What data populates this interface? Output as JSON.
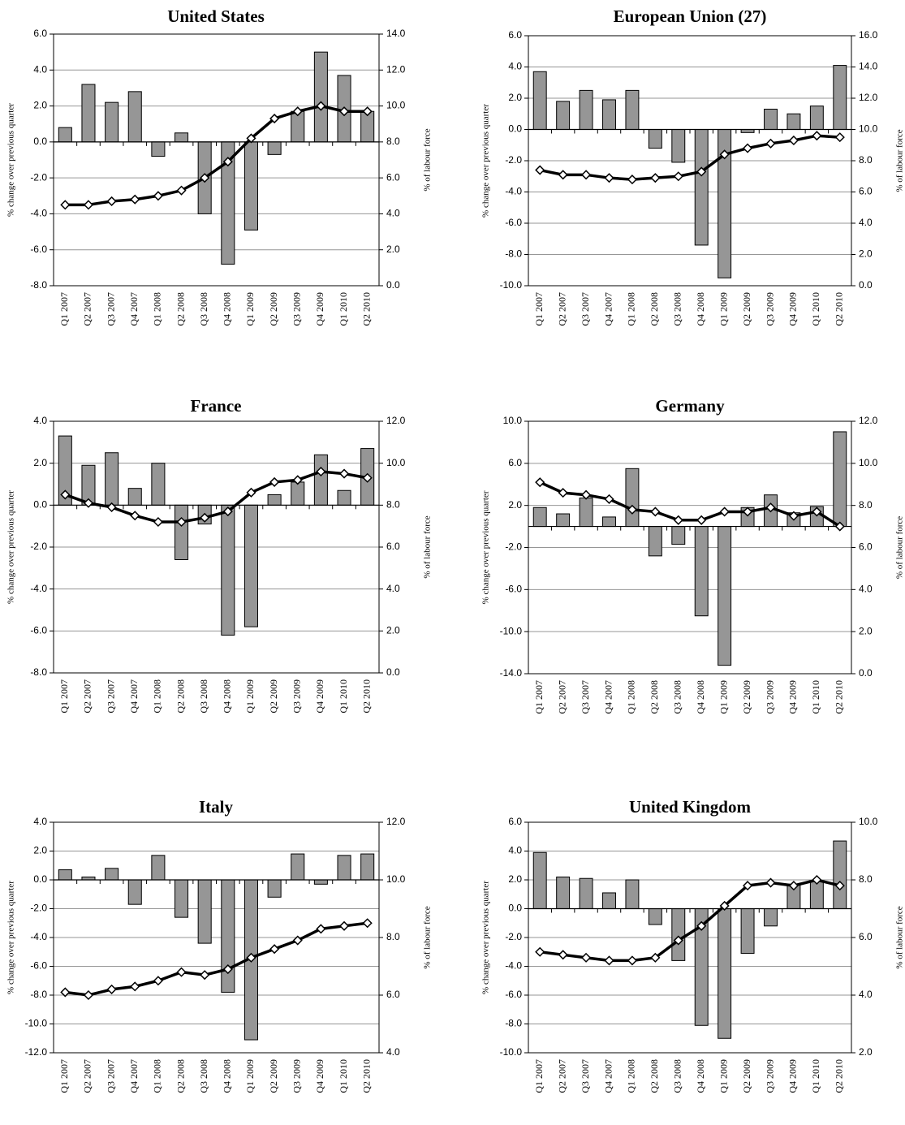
{
  "categories": [
    "Q1 2007",
    "Q2 2007",
    "Q3 2007",
    "Q4 2007",
    "Q1 2008",
    "Q2 2008",
    "Q3 2008",
    "Q4 2008",
    "Q1 2009",
    "Q2 2009",
    "Q3 2009",
    "Q4 2009",
    "Q1 2010",
    "Q2 2010"
  ],
  "labels": {
    "ylabel_left": "% change over previous quarter",
    "ylabel_right": "% of labour force"
  },
  "colors": {
    "bar_fill": "#969696",
    "bar_stroke": "#000000",
    "line": "#000000",
    "marker_fill": "#ffffff",
    "grid": "#969696"
  },
  "chart_data": [
    {
      "type": "bar",
      "title": "United States",
      "ylim_left": [
        -8,
        6
      ],
      "yticks_left": [
        "6.0",
        "4.0",
        "2.0",
        "0.0",
        "-2.0",
        "-4.0",
        "-6.0",
        "-8.0"
      ],
      "ylim_right": [
        0,
        14
      ],
      "yticks_right": [
        "14.0",
        "12.0",
        "10.0",
        "8.0",
        "6.0",
        "4.0",
        "2.0",
        "0.0"
      ],
      "grid": true,
      "series": [
        {
          "kind": "bar",
          "axis": "left",
          "values": [
            0.8,
            3.2,
            2.2,
            2.8,
            -0.8,
            0.5,
            -4.0,
            -6.8,
            -4.9,
            -0.7,
            1.7,
            5.0,
            3.7,
            1.7
          ]
        },
        {
          "kind": "line",
          "axis": "right",
          "values": [
            4.5,
            4.5,
            4.7,
            4.8,
            5.0,
            5.3,
            6.0,
            6.9,
            8.2,
            9.3,
            9.7,
            10.0,
            9.7,
            9.7
          ]
        }
      ]
    },
    {
      "type": "bar",
      "title": "European Union (27)",
      "ylim_left": [
        -10,
        6
      ],
      "yticks_left": [
        "6.0",
        "4.0",
        "2.0",
        "0.0",
        "-2.0",
        "-4.0",
        "-6.0",
        "-8.0",
        "-10.0"
      ],
      "ylim_right": [
        0,
        16
      ],
      "yticks_right": [
        "16.0",
        "14.0",
        "12.0",
        "10.0",
        "8.0",
        "6.0",
        "4.0",
        "2.0",
        "0.0"
      ],
      "grid": true,
      "series": [
        {
          "kind": "bar",
          "axis": "left",
          "values": [
            3.7,
            1.8,
            2.5,
            1.9,
            2.5,
            -1.2,
            -2.1,
            -7.4,
            -9.5,
            -0.2,
            1.3,
            1.0,
            1.5,
            4.1
          ]
        },
        {
          "kind": "line",
          "axis": "right",
          "values": [
            7.4,
            7.1,
            7.1,
            6.9,
            6.8,
            6.9,
            7.0,
            7.3,
            8.4,
            8.8,
            9.1,
            9.3,
            9.6,
            9.5
          ]
        }
      ]
    },
    {
      "type": "bar",
      "title": "France",
      "ylim_left": [
        -8,
        4
      ],
      "yticks_left": [
        "4.0",
        "2.0",
        "0.0",
        "-2.0",
        "-4.0",
        "-6.0",
        "-8.0"
      ],
      "ylim_right": [
        0,
        12
      ],
      "yticks_right": [
        "12.0",
        "10.0",
        "8.0",
        "6.0",
        "4.0",
        "2.0",
        "0.0"
      ],
      "grid": true,
      "series": [
        {
          "kind": "bar",
          "axis": "left",
          "values": [
            3.3,
            1.9,
            2.5,
            0.8,
            2.0,
            -2.6,
            -0.9,
            -6.2,
            -5.8,
            0.5,
            1.1,
            2.4,
            0.7,
            2.7
          ]
        },
        {
          "kind": "line",
          "axis": "right",
          "values": [
            8.5,
            8.1,
            7.9,
            7.5,
            7.2,
            7.2,
            7.4,
            7.7,
            8.6,
            9.1,
            9.2,
            9.6,
            9.5,
            9.3
          ]
        }
      ]
    },
    {
      "type": "bar",
      "title": "Germany",
      "ylim_left": [
        -14,
        10
      ],
      "yticks_left": [
        "10.0",
        "6.0",
        "2.0",
        "-2.0",
        "-6.0",
        "-10.0",
        "-14.0"
      ],
      "ylim_right": [
        0,
        12
      ],
      "yticks_right": [
        "12.0",
        "10.0",
        "8.0",
        "6.0",
        "4.0",
        "2.0",
        "0.0"
      ],
      "grid": true,
      "series": [
        {
          "kind": "bar",
          "axis": "left",
          "values": [
            1.8,
            1.2,
            2.7,
            0.9,
            5.5,
            -2.8,
            -1.7,
            -8.5,
            -13.2,
            1.8,
            3.0,
            1.3,
            1.9,
            9.0
          ]
        },
        {
          "kind": "line",
          "axis": "right",
          "values": [
            9.1,
            8.6,
            8.5,
            8.3,
            7.8,
            7.7,
            7.3,
            7.3,
            7.7,
            7.7,
            7.9,
            7.5,
            7.7,
            7.0
          ]
        }
      ]
    },
    {
      "type": "bar",
      "title": "Italy",
      "ylim_left": [
        -12,
        4
      ],
      "yticks_left": [
        "4.0",
        "2.0",
        "0.0",
        "-2.0",
        "-4.0",
        "-6.0",
        "-8.0",
        "-10.0",
        "-12.0"
      ],
      "ylim_right": [
        4,
        12
      ],
      "yticks_right": [
        "12.0",
        "10.0",
        "8.0",
        "6.0",
        "4.0"
      ],
      "grid": true,
      "series": [
        {
          "kind": "bar",
          "axis": "left",
          "values": [
            0.7,
            0.2,
            0.8,
            -1.7,
            1.7,
            -2.6,
            -4.4,
            -7.8,
            -11.1,
            -1.2,
            1.8,
            -0.3,
            1.7,
            1.8
          ]
        },
        {
          "kind": "line",
          "axis": "right",
          "values": [
            6.1,
            6.0,
            6.2,
            6.3,
            6.5,
            6.8,
            6.7,
            6.9,
            7.3,
            7.6,
            7.9,
            8.3,
            8.4,
            8.5
          ]
        }
      ]
    },
    {
      "type": "bar",
      "title": "United Kingdom",
      "ylim_left": [
        -10,
        6
      ],
      "yticks_left": [
        "6.0",
        "4.0",
        "2.0",
        "0.0",
        "-2.0",
        "-4.0",
        "-6.0",
        "-8.0",
        "-10.0"
      ],
      "ylim_right": [
        2,
        10
      ],
      "yticks_right": [
        "10.0",
        "8.0",
        "6.0",
        "4.0",
        "2.0"
      ],
      "grid": true,
      "series": [
        {
          "kind": "bar",
          "axis": "left",
          "values": [
            3.9,
            2.2,
            2.1,
            1.1,
            2.0,
            -1.1,
            -3.6,
            -8.1,
            -9.0,
            -3.1,
            -1.2,
            1.7,
            1.9,
            4.7
          ]
        },
        {
          "kind": "line",
          "axis": "right",
          "values": [
            5.5,
            5.4,
            5.3,
            5.2,
            5.2,
            5.3,
            5.9,
            6.4,
            7.1,
            7.8,
            7.9,
            7.8,
            8.0,
            7.8
          ]
        }
      ]
    }
  ]
}
